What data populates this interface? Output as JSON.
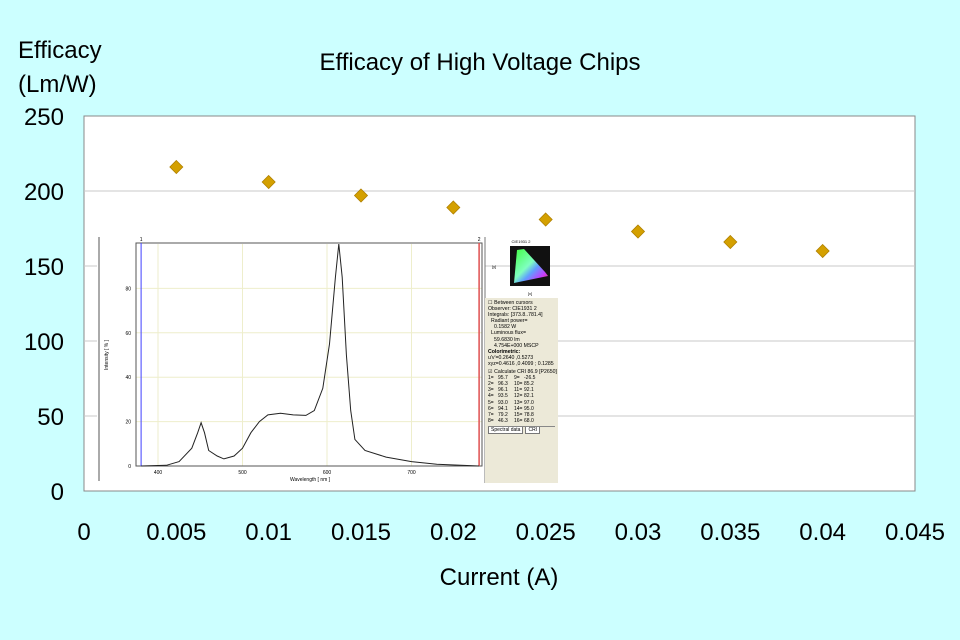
{
  "chart_data": {
    "type": "scatter",
    "title": "Efficacy of High Voltage Chips",
    "xlabel": "Current (A)",
    "ylabel": [
      "Efficacy",
      "(Lm/W)"
    ],
    "xlim": [
      0,
      0.045
    ],
    "ylim": [
      0,
      250
    ],
    "xticks": [
      "0",
      "0.005",
      "0.01",
      "0.015",
      "0.02",
      "0.025",
      "0.03",
      "0.035",
      "0.04",
      "0.045"
    ],
    "yticks": [
      "0",
      "50",
      "100",
      "150",
      "200",
      "250"
    ],
    "grid": "horizontal",
    "marker": "diamond",
    "marker_color": "#d4a000",
    "x": [
      0.005,
      0.01,
      0.015,
      0.02,
      0.025,
      0.03,
      0.035,
      0.04
    ],
    "y": [
      216,
      206,
      197,
      189,
      181,
      173,
      166,
      160
    ]
  },
  "inset": {
    "spectrum": {
      "xlabel": "Wavelength [ nm ]",
      "ylabel": "Intensity [ % ]",
      "xticks": [
        "400",
        "500",
        "600",
        "700"
      ],
      "yticks": [
        "0",
        "20",
        "40",
        "60",
        "80"
      ],
      "cursor_labels": [
        "1",
        "2"
      ],
      "points": [
        [
          380,
          0
        ],
        [
          410,
          0.3
        ],
        [
          425,
          2
        ],
        [
          440,
          8
        ],
        [
          447,
          15
        ],
        [
          451,
          19.5
        ],
        [
          455,
          15
        ],
        [
          460,
          7
        ],
        [
          470,
          4.5
        ],
        [
          478,
          3.2
        ],
        [
          490,
          4.5
        ],
        [
          500,
          8
        ],
        [
          510,
          15
        ],
        [
          520,
          20
        ],
        [
          530,
          23
        ],
        [
          545,
          23.8
        ],
        [
          560,
          23
        ],
        [
          575,
          22.8
        ],
        [
          585,
          25
        ],
        [
          595,
          35
        ],
        [
          603,
          55
        ],
        [
          610,
          85
        ],
        [
          614,
          100
        ],
        [
          618,
          85
        ],
        [
          623,
          50
        ],
        [
          628,
          25
        ],
        [
          633,
          12
        ],
        [
          645,
          7
        ],
        [
          670,
          4
        ],
        [
          700,
          2
        ],
        [
          730,
          0.8
        ],
        [
          780,
          0
        ]
      ]
    },
    "cie": {
      "title": "CIE1931 2",
      "xlabel": "[x]",
      "ylabel": "[y]"
    },
    "panel": {
      "between_cursors": "Between cursors",
      "observer": "Observer:  CIE1931 2",
      "integrals": "Integrals: [373.8..781.4]",
      "radiant_power": "Radiant power=",
      "radiant_value": "0.1582 W",
      "luminous_flux": "Luminous flux=",
      "luminous_value": "59.6830 lm",
      "mscp": "4.754E+000 MSCP",
      "colorimetric": "Colorimetric:",
      "uv": "u'v'=0.2640 ,0.5273",
      "xyz": "xyz=0.4616 ,0.4099 ;  0.1285",
      "calculate": "☑ Calculate  CRI 86.9  [P2650]",
      "cri": [
        [
          "1=",
          "95.7",
          "9=",
          "-26.5"
        ],
        [
          "2=",
          "96.3",
          "10=",
          "85.2"
        ],
        [
          "3=",
          "96.1",
          "11=",
          "92.1"
        ],
        [
          "4=",
          "93.5",
          "12=",
          "82.1"
        ],
        [
          "5=",
          "93.0",
          "13=",
          "97.0"
        ],
        [
          "6=",
          "94.1",
          "14=",
          "95.0"
        ],
        [
          "7=",
          "79.2",
          "15=",
          "78.8"
        ],
        [
          "8=",
          "46.3",
          "16=",
          "68.0"
        ]
      ],
      "tabs": [
        "Spectral data",
        "CRI"
      ]
    }
  }
}
